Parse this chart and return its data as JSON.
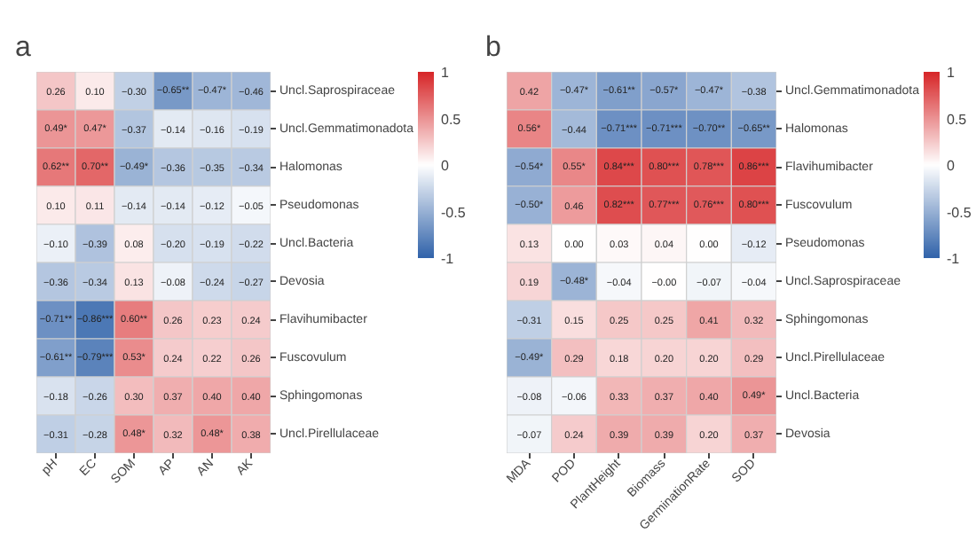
{
  "chart_data": [
    {
      "type": "heatmap",
      "title": "a",
      "categories": [
        "pH",
        "EC",
        "SOM",
        "AP",
        "AN",
        "AK"
      ],
      "y_categories": [
        "Uncl.Saprospiraceae",
        "Uncl.Gemmatimonadota",
        "Halomonas",
        "Pseudomonas",
        "Uncl.Bacteria",
        "Devosia",
        "Flavihumibacter",
        "Fuscovulum",
        "Sphingomonas",
        "Uncl.Pirellulaceae"
      ],
      "cells": [
        [
          0.26,
          0.1,
          -0.3,
          -0.65,
          -0.47,
          -0.46
        ],
        [
          0.49,
          0.47,
          -0.37,
          -0.14,
          -0.16,
          -0.19
        ],
        [
          0.62,
          0.7,
          -0.49,
          -0.36,
          -0.35,
          -0.34
        ],
        [
          0.1,
          0.11,
          -0.14,
          -0.14,
          -0.12,
          -0.05
        ],
        [
          -0.1,
          -0.39,
          0.08,
          -0.2,
          -0.19,
          -0.22
        ],
        [
          -0.36,
          -0.34,
          0.13,
          -0.08,
          -0.24,
          -0.27
        ],
        [
          -0.71,
          -0.86,
          0.6,
          0.26,
          0.23,
          0.24
        ],
        [
          -0.61,
          -0.79,
          0.53,
          0.24,
          0.22,
          0.26
        ],
        [
          -0.18,
          -0.26,
          0.3,
          0.37,
          0.4,
          0.4
        ],
        [
          -0.31,
          -0.28,
          0.48,
          0.32,
          0.48,
          0.38
        ]
      ],
      "cell_labels": [
        [
          "0.26",
          "0.10",
          "−0.30",
          "−0.65**",
          "−0.47*",
          "−0.46"
        ],
        [
          "0.49*",
          "0.47*",
          "−0.37",
          "−0.14",
          "−0.16",
          "−0.19"
        ],
        [
          "0.62**",
          "0.70**",
          "−0.49*",
          "−0.36",
          "−0.35",
          "−0.34"
        ],
        [
          "0.10",
          "0.11",
          "−0.14",
          "−0.14",
          "−0.12",
          "−0.05"
        ],
        [
          "−0.10",
          "−0.39",
          "0.08",
          "−0.20",
          "−0.19",
          "−0.22"
        ],
        [
          "−0.36",
          "−0.34",
          "0.13",
          "−0.08",
          "−0.24",
          "−0.27"
        ],
        [
          "−0.71**",
          "−0.86***",
          "0.60**",
          "0.26",
          "0.23",
          "0.24"
        ],
        [
          "−0.61**",
          "−0.79***",
          "0.53*",
          "0.24",
          "0.22",
          "0.26"
        ],
        [
          "−0.18",
          "−0.26",
          "0.30",
          "0.37",
          "0.40",
          "0.40"
        ],
        [
          "−0.31",
          "−0.28",
          "0.48*",
          "0.32",
          "0.48*",
          "0.38"
        ]
      ],
      "clim": [
        -1,
        1
      ],
      "cticks": [
        -1,
        -0.5,
        0,
        0.5,
        1
      ]
    },
    {
      "type": "heatmap",
      "title": "b",
      "categories": [
        "MDA",
        "POD",
        "PlantHeight",
        "Biomass",
        "GerminationRate",
        "SOD"
      ],
      "y_categories": [
        "Uncl.Gemmatimonadota",
        "Halomonas",
        "Flavihumibacter",
        "Fuscovulum",
        "Pseudomonas",
        "Uncl.Saprospiraceae",
        "Sphingomonas",
        "Uncl.Pirellulaceae",
        "Uncl.Bacteria",
        "Devosia"
      ],
      "cells": [
        [
          0.42,
          -0.47,
          -0.61,
          -0.57,
          -0.47,
          -0.38
        ],
        [
          0.56,
          -0.44,
          -0.71,
          -0.71,
          -0.7,
          -0.65
        ],
        [
          -0.54,
          0.55,
          0.84,
          0.8,
          0.78,
          0.86
        ],
        [
          -0.5,
          0.46,
          0.82,
          0.77,
          0.76,
          0.8
        ],
        [
          0.13,
          0.0,
          0.03,
          0.04,
          0.0,
          -0.12
        ],
        [
          0.19,
          -0.48,
          -0.04,
          -0.0,
          -0.07,
          -0.04
        ],
        [
          -0.31,
          0.15,
          0.25,
          0.25,
          0.41,
          0.32
        ],
        [
          -0.49,
          0.29,
          0.18,
          0.2,
          0.2,
          0.29
        ],
        [
          -0.08,
          -0.06,
          0.33,
          0.37,
          0.4,
          0.49
        ],
        [
          -0.07,
          0.24,
          0.39,
          0.39,
          0.2,
          0.37
        ]
      ],
      "cell_labels": [
        [
          "0.42",
          "−0.47*",
          "−0.61**",
          "−0.57*",
          "−0.47*",
          "−0.38"
        ],
        [
          "0.56*",
          "−0.44",
          "−0.71***",
          "−0.71***",
          "−0.70**",
          "−0.65**"
        ],
        [
          "−0.54*",
          "0.55*",
          "0.84***",
          "0.80***",
          "0.78***",
          "0.86***"
        ],
        [
          "−0.50*",
          "0.46",
          "0.82***",
          "0.77***",
          "0.76***",
          "0.80***"
        ],
        [
          "0.13",
          "0.00",
          "0.03",
          "0.04",
          "0.00",
          "−0.12"
        ],
        [
          "0.19",
          "−0.48*",
          "−0.04",
          "−0.00",
          "−0.07",
          "−0.04"
        ],
        [
          "−0.31",
          "0.15",
          "0.25",
          "0.25",
          "0.41",
          "0.32"
        ],
        [
          "−0.49*",
          "0.29",
          "0.18",
          "0.20",
          "0.20",
          "0.29"
        ],
        [
          "−0.08",
          "−0.06",
          "0.33",
          "0.37",
          "0.40",
          "0.49*"
        ],
        [
          "−0.07",
          "0.24",
          "0.39",
          "0.39",
          "0.20",
          "0.37"
        ]
      ],
      "clim": [
        -1,
        1
      ],
      "cticks": [
        -1,
        -0.5,
        0,
        0.5,
        1
      ]
    }
  ]
}
